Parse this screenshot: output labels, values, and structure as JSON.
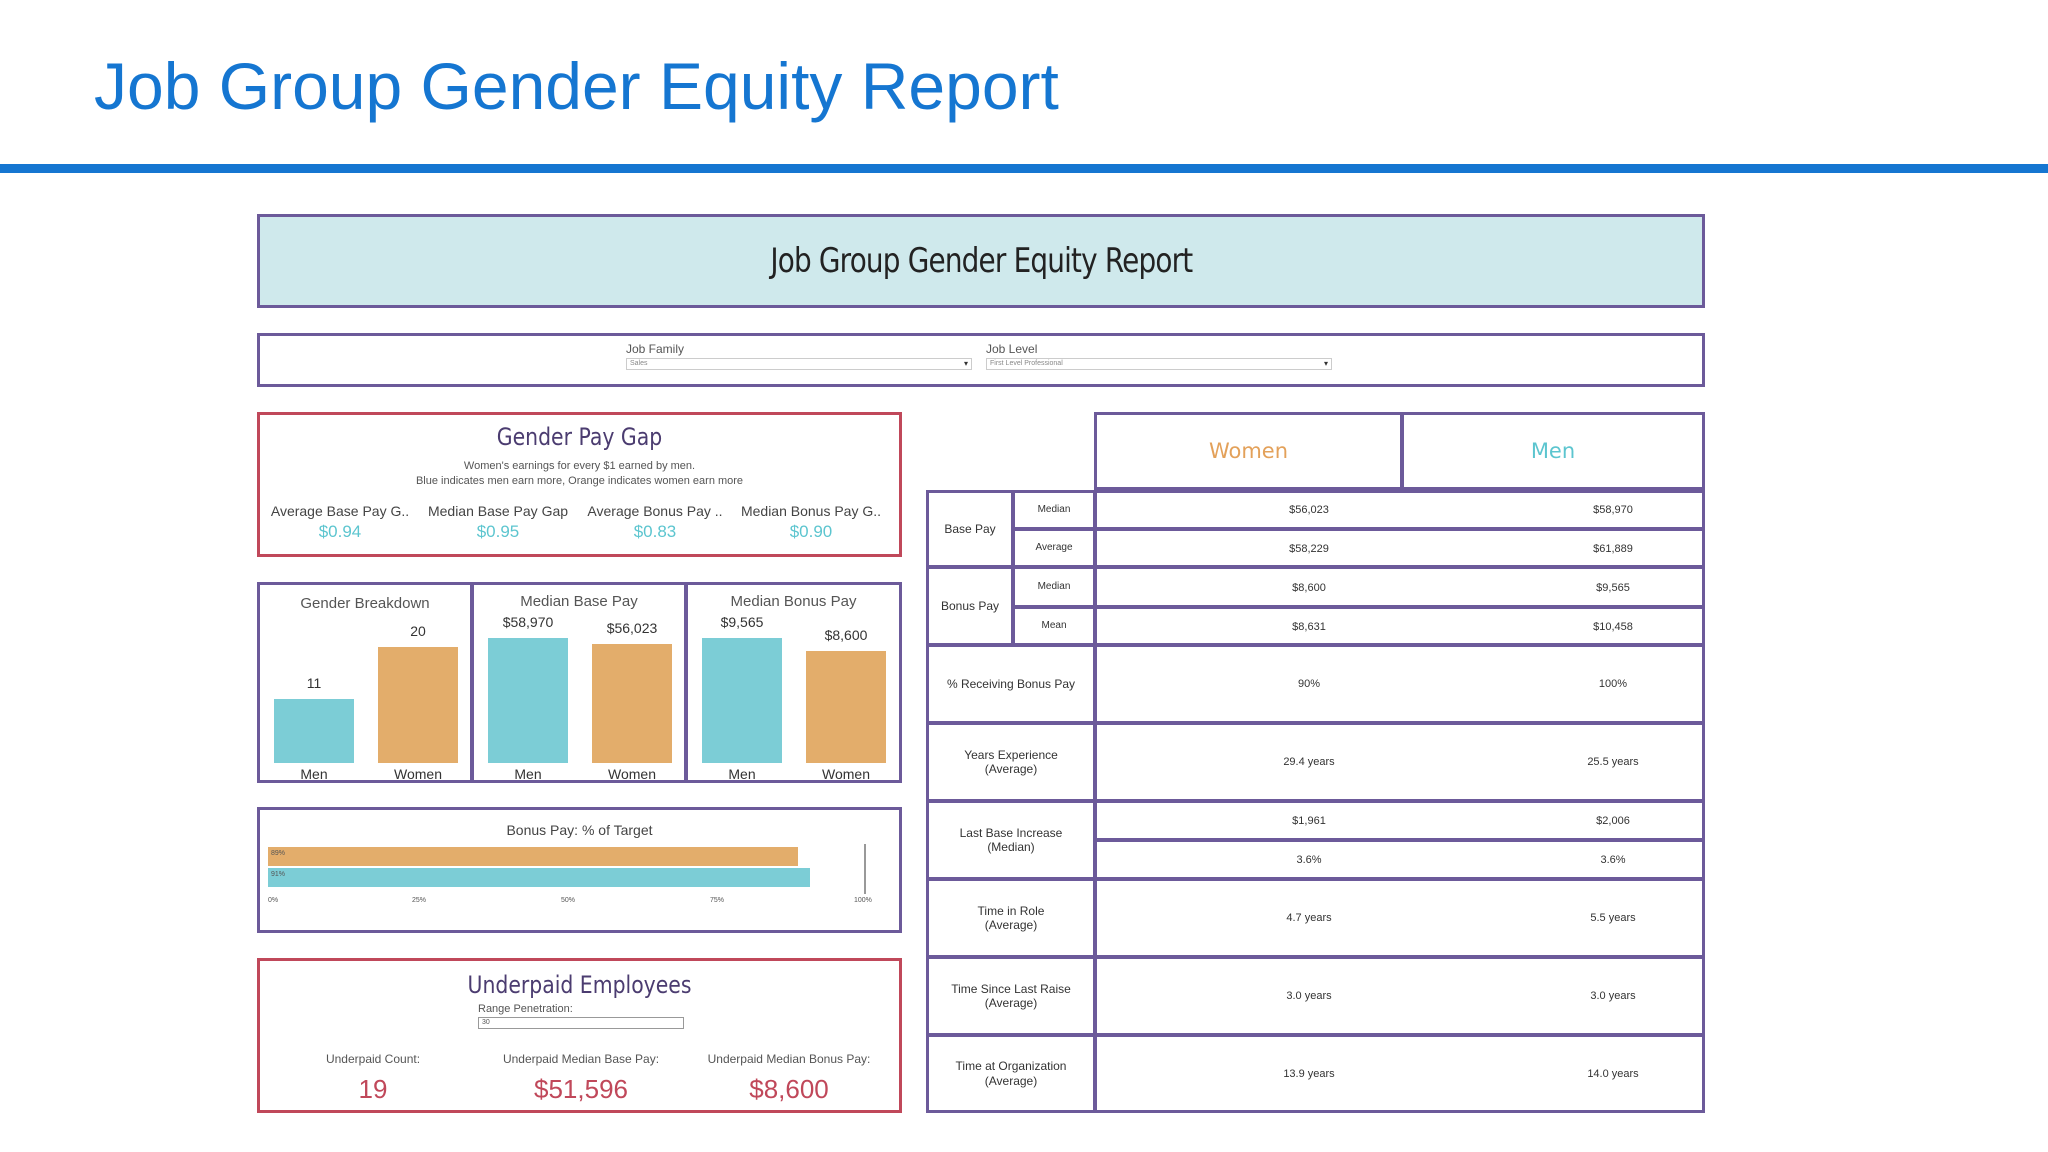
{
  "slide": {
    "title": "Job Group Gender Equity Report"
  },
  "dashboard": {
    "header": "Job Group Gender Equity Report",
    "filters": {
      "job_family": {
        "label": "Job Family",
        "value": "Sales"
      },
      "job_level": {
        "label": "Job Level",
        "value": "First Level Professional"
      }
    },
    "pay_gap": {
      "title": "Gender Pay Gap",
      "subtitle1": "Women's earnings for every $1 earned by men.",
      "subtitle2": "Blue indicates men earn more, Orange indicates women earn more",
      "metrics": [
        {
          "label": "Average Base Pay G..",
          "value": "$0.94"
        },
        {
          "label": "Median Base Pay Gap",
          "value": "$0.95"
        },
        {
          "label": "Average Bonus Pay ..",
          "value": "$0.83"
        },
        {
          "label": "Median Bonus Pay G..",
          "value": "$0.90"
        }
      ]
    },
    "gender_breakdown": {
      "title": "Gender Breakdown",
      "categories": [
        "Men",
        "Women"
      ],
      "labels": [
        "11",
        "20"
      ],
      "values": [
        11,
        20
      ],
      "ymax": 20
    },
    "median_base_pay": {
      "title": "Median Base Pay",
      "categories": [
        "Men",
        "Women"
      ],
      "labels": [
        "$58,970",
        "$56,023"
      ],
      "values": [
        58970,
        56023
      ],
      "ymax": 58970
    },
    "median_bonus_pay": {
      "title": "Median Bonus Pay",
      "categories": [
        "Men",
        "Women"
      ],
      "labels": [
        "$9,565",
        "$8,600"
      ],
      "values": [
        9565,
        8600
      ],
      "ymax": 9565
    },
    "bonus_target": {
      "title": "Bonus Pay: % of Target",
      "bars": [
        {
          "label": "89%",
          "value": 89,
          "color": "#e3ad6b"
        },
        {
          "label": "91%",
          "value": 91,
          "color": "#7ccdd6"
        }
      ],
      "ticks": [
        "0%",
        "25%",
        "50%",
        "75%",
        "100%"
      ]
    },
    "underpaid": {
      "title": "Underpaid Employees",
      "range_label": "Range Penetration:",
      "range_value": "30",
      "metrics": [
        {
          "label": "Underpaid Count:",
          "value": "19"
        },
        {
          "label": "Underpaid Median Base Pay:",
          "value": "$51,596"
        },
        {
          "label": "Underpaid Median Bonus Pay:",
          "value": "$8,600"
        }
      ]
    },
    "table": {
      "women_header": "Women",
      "men_header": "Men",
      "base_pay": "Base Pay",
      "bonus_pay": "Bonus Pay",
      "median": "Median",
      "average": "Average",
      "mean": "Mean",
      "rows": {
        "base_median": {
          "women": "$56,023",
          "men": "$58,970"
        },
        "base_average": {
          "women": "$58,229",
          "men": "$61,889"
        },
        "bonus_median": {
          "women": "$8,600",
          "men": "$9,565"
        },
        "bonus_mean": {
          "women": "$8,631",
          "men": "$10,458"
        },
        "receiving_bonus": {
          "label": "% Receiving Bonus Pay",
          "women": "90%",
          "men": "100%"
        },
        "years_exp": {
          "label1": "Years Experience",
          "label2": "(Average)",
          "women": "29.4 years",
          "men": "25.5 years"
        },
        "last_increase": {
          "label1": "Last Base Increase",
          "label2": "(Median)",
          "women1": "$1,961",
          "men1": "$2,006",
          "women2": "3.6%",
          "men2": "3.6%"
        },
        "time_role": {
          "label1": "Time in Role",
          "label2": "(Average)",
          "women": "4.7 years",
          "men": "5.5 years"
        },
        "since_raise": {
          "label1": "Time Since Last Raise",
          "label2": "(Average)",
          "women": "3.0 years",
          "men": "3.0 years"
        },
        "at_org": {
          "label1": "Time at Organization",
          "label2": "(Average)",
          "women": "13.9 years",
          "men": "14.0 years"
        }
      }
    },
    "colors": {
      "blue_accent": "#1576d1",
      "men": "#7ccdd6",
      "women": "#e3ad6b",
      "purple_border": "#6c5a9a",
      "red_border": "#c0485a"
    }
  }
}
